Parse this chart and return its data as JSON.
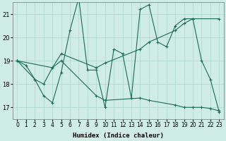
{
  "xlabel": "Humidex (Indice chaleur)",
  "xlim": [
    -0.5,
    23.5
  ],
  "ylim": [
    16.5,
    21.5
  ],
  "yticks": [
    17,
    18,
    19,
    20,
    21
  ],
  "xticks": [
    0,
    1,
    2,
    3,
    4,
    5,
    6,
    7,
    8,
    9,
    10,
    11,
    12,
    13,
    14,
    15,
    16,
    17,
    18,
    19,
    20,
    21,
    22,
    23
  ],
  "bg_color": "#d0ece6",
  "grid_color": "#b0d8d0",
  "line_color": "#1a6b5a",
  "series1_x": [
    0,
    1,
    2,
    3,
    4,
    5,
    6,
    7,
    8,
    9,
    10,
    11,
    12,
    13,
    14,
    15,
    16,
    17,
    18,
    19,
    20,
    21,
    22,
    23
  ],
  "series1_y": [
    19.0,
    18.8,
    18.2,
    17.5,
    17.2,
    18.5,
    20.3,
    21.7,
    18.6,
    18.6,
    17.0,
    19.5,
    19.3,
    17.4,
    21.2,
    21.4,
    19.8,
    19.6,
    20.5,
    20.8,
    20.8,
    19.0,
    18.2,
    16.8
  ],
  "series2_x": [
    0,
    2,
    3,
    4,
    5,
    9,
    10,
    14,
    15,
    18,
    19,
    20,
    21,
    22,
    23
  ],
  "series2_y": [
    19.0,
    18.2,
    18.0,
    18.7,
    19.0,
    17.5,
    17.3,
    17.4,
    17.3,
    17.1,
    17.0,
    17.0,
    17.0,
    16.95,
    16.85
  ],
  "series3_x": [
    0,
    4,
    5,
    9,
    10,
    14,
    15,
    18,
    19,
    20,
    23
  ],
  "series3_y": [
    19.0,
    18.7,
    19.3,
    18.7,
    18.9,
    19.5,
    19.8,
    20.3,
    20.6,
    20.8,
    20.8
  ]
}
